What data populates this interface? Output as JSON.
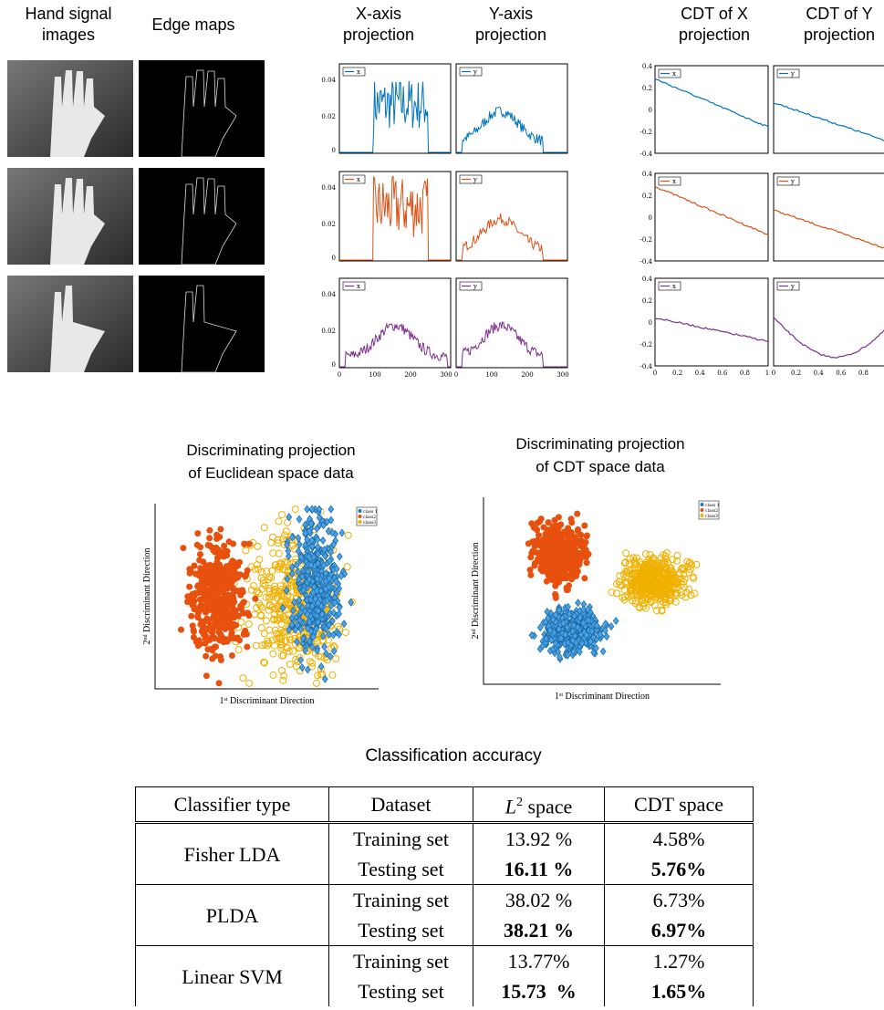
{
  "headers": [
    "Hand signal images",
    "Edge maps",
    "X-axis projection",
    "Y-axis projection",
    "CDT of X projection",
    "CDT of Y projection"
  ],
  "projection_axes": {
    "x_ticks": [
      "0",
      "100",
      "200",
      "300"
    ],
    "y_ticks": [
      "0.04",
      "0.02",
      "0"
    ],
    "legend": [
      "x",
      "y"
    ]
  },
  "cdt_axes": {
    "x_ticks": [
      "0",
      "0.2",
      "0.4",
      "0.6",
      "0.8",
      "1"
    ],
    "y_ticks": [
      "0.4",
      "0.2",
      "0",
      "-0.2",
      "-0.4"
    ]
  },
  "scatter_plots": [
    {
      "title": [
        "Discriminating projection",
        "of Euclidean space data"
      ]
    },
    {
      "title": [
        "Discriminating projection",
        "of CDT space data"
      ]
    }
  ],
  "scatter_labels": {
    "x": {
      "num": "1",
      "sup": "st",
      "text": " Discriminant Direction"
    },
    "y": {
      "num": "2",
      "sup": "nd",
      "text": " Discriminant Direction"
    },
    "legend": [
      "class 1",
      "class2",
      "class3"
    ]
  },
  "table": {
    "title": "Classification accuracy",
    "header": {
      "c0": "Classifier type",
      "c1": "Dataset",
      "c2": {
        "symbol": "L",
        "sup": "2",
        "text": " space"
      },
      "c3": "CDT space"
    },
    "groups": [
      {
        "classifier": "Fisher LDA",
        "rows": [
          [
            "Training set",
            "13.92 %",
            "4.58%"
          ],
          [
            "Testing set",
            "16.11 %",
            "5.76%"
          ]
        ]
      },
      {
        "classifier": "PLDA",
        "rows": [
          [
            "Training set",
            "38.02 %",
            "6.73%"
          ],
          [
            "Testing set",
            "38.21 %",
            "6.97%"
          ]
        ]
      },
      {
        "classifier": "Linear SVM",
        "rows": [
          [
            "Training set",
            "13.77%",
            "1.27%"
          ],
          [
            "Testing set",
            "15.73  %",
            "1.65%"
          ]
        ]
      }
    ]
  }
}
